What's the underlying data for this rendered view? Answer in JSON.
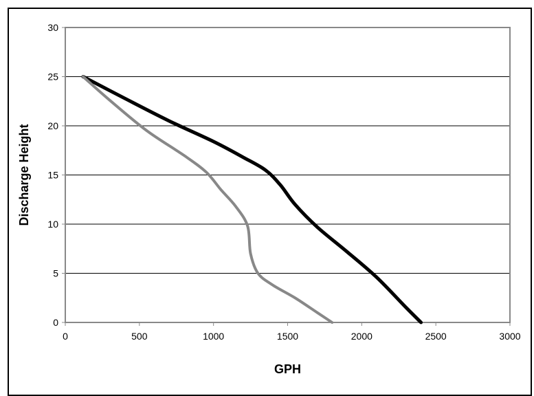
{
  "chart_data": {
    "type": "line",
    "title": "",
    "xlabel": "GPH",
    "ylabel": "Discharge Height",
    "xlim": [
      0,
      3000
    ],
    "ylim": [
      0,
      30
    ],
    "x_ticks": [
      0,
      500,
      1000,
      1500,
      2000,
      2500,
      3000
    ],
    "y_ticks": [
      0,
      5,
      10,
      15,
      20,
      25,
      30
    ],
    "x_tick_labels": [
      "0",
      "500",
      "1000",
      "1500",
      "2000",
      "2500",
      "3000"
    ],
    "y_tick_labels": [
      "0",
      "5",
      "10",
      "15",
      "20",
      "25",
      "30"
    ],
    "grid": "horizontal",
    "legend": "none",
    "series": [
      {
        "color": "#000000",
        "points": [
          [
            120,
            25
          ],
          [
            400,
            22.8
          ],
          [
            700,
            20.5
          ],
          [
            1000,
            18.4
          ],
          [
            1200,
            16.8
          ],
          [
            1350,
            15.5
          ],
          [
            1450,
            14
          ],
          [
            1550,
            12
          ],
          [
            1700,
            9.7
          ],
          [
            1900,
            7.2
          ],
          [
            2100,
            4.6
          ],
          [
            2300,
            1.5
          ],
          [
            2400,
            0
          ]
        ]
      },
      {
        "color": "#888888",
        "points": [
          [
            120,
            25
          ],
          [
            300,
            22.6
          ],
          [
            550,
            19.5
          ],
          [
            800,
            17
          ],
          [
            950,
            15.3
          ],
          [
            1050,
            13.5
          ],
          [
            1150,
            11.8
          ],
          [
            1230,
            9.8
          ],
          [
            1250,
            7
          ],
          [
            1300,
            5
          ],
          [
            1400,
            3.8
          ],
          [
            1550,
            2.5
          ],
          [
            1700,
            1
          ],
          [
            1800,
            0
          ]
        ]
      }
    ]
  }
}
